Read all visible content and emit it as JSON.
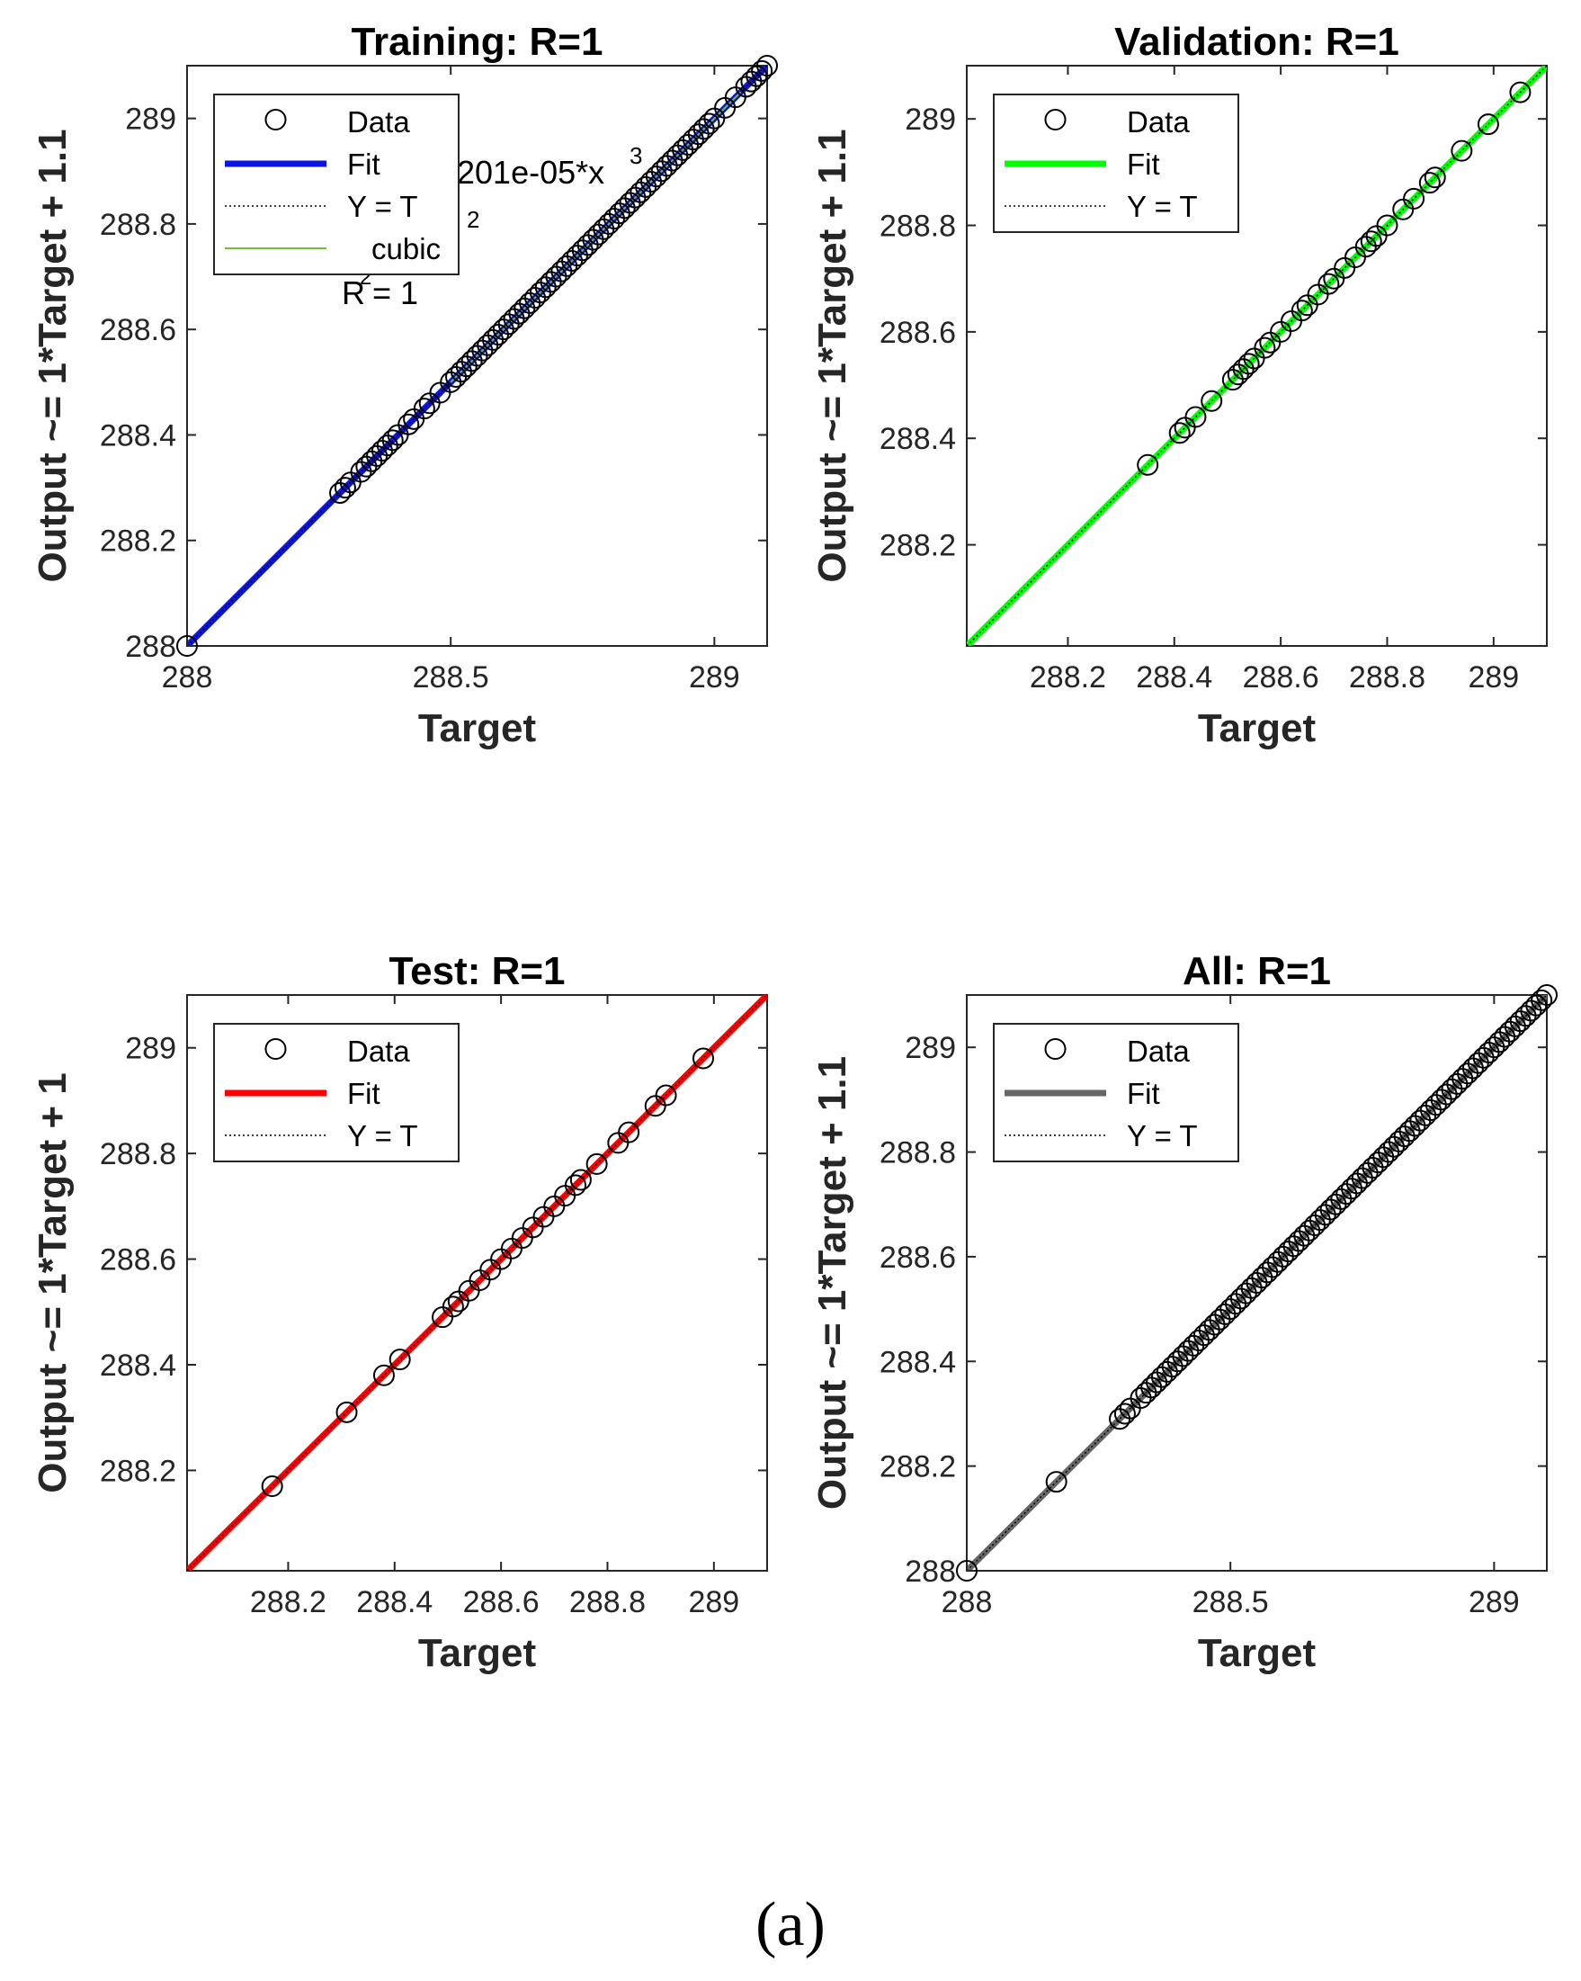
{
  "figure_caption": "(a)",
  "chart_data": [
    {
      "type": "scatter",
      "panel": "top-left",
      "title": "Training: R=1",
      "xlabel": "Target",
      "ylabel": "Output ~= 1*Target + 1.1",
      "xlim": [
        288,
        289.1
      ],
      "ylim": [
        288,
        289.1
      ],
      "xticks": [
        288,
        288.5,
        289
      ],
      "xtick_labels": [
        "288",
        "288.5",
        "289"
      ],
      "yticks": [
        288,
        288.2,
        288.4,
        288.6,
        288.8,
        289
      ],
      "ytick_labels": [
        "288",
        "288.2",
        "288.4",
        "288.6",
        "288.8",
        "289"
      ],
      "grid": false,
      "legend_position": "top-left",
      "legend": [
        {
          "label": "Data",
          "kind": "marker"
        },
        {
          "label": "Fit",
          "kind": "thick",
          "color": "#0a14e6"
        },
        {
          "label": "Y = T",
          "kind": "dotted"
        },
        {
          "label": "cubic",
          "kind": "thin",
          "color": "#6fbf3f"
        }
      ],
      "annotations": [
        "201e-05*x",
        "3",
        "2",
        "R",
        "2",
        " = 1"
      ],
      "fit_color": "#0a14e6",
      "fit": [
        [
          288,
          288
        ],
        [
          289.1,
          289.1
        ]
      ],
      "cubic_line": {
        "color": "#6fbf3f",
        "points": [
          [
            288.5,
            288.5
          ],
          [
            289.05,
            289.05
          ]
        ]
      },
      "points": [
        [
          288.0,
          288.0
        ],
        [
          288.29,
          288.29
        ],
        [
          288.3,
          288.3
        ],
        [
          288.31,
          288.31
        ],
        [
          288.33,
          288.33
        ],
        [
          288.34,
          288.34
        ],
        [
          288.35,
          288.35
        ],
        [
          288.36,
          288.36
        ],
        [
          288.37,
          288.37
        ],
        [
          288.38,
          288.38
        ],
        [
          288.39,
          288.39
        ],
        [
          288.4,
          288.4
        ],
        [
          288.42,
          288.42
        ],
        [
          288.43,
          288.43
        ],
        [
          288.45,
          288.45
        ],
        [
          288.46,
          288.46
        ],
        [
          288.48,
          288.48
        ],
        [
          288.5,
          288.5
        ],
        [
          288.51,
          288.51
        ],
        [
          288.52,
          288.52
        ],
        [
          288.53,
          288.53
        ],
        [
          288.54,
          288.54
        ],
        [
          288.55,
          288.55
        ],
        [
          288.56,
          288.56
        ],
        [
          288.57,
          288.57
        ],
        [
          288.58,
          288.58
        ],
        [
          288.59,
          288.59
        ],
        [
          288.6,
          288.6
        ],
        [
          288.61,
          288.61
        ],
        [
          288.62,
          288.62
        ],
        [
          288.63,
          288.63
        ],
        [
          288.64,
          288.64
        ],
        [
          288.65,
          288.65
        ],
        [
          288.66,
          288.66
        ],
        [
          288.67,
          288.67
        ],
        [
          288.68,
          288.68
        ],
        [
          288.69,
          288.69
        ],
        [
          288.7,
          288.7
        ],
        [
          288.71,
          288.71
        ],
        [
          288.72,
          288.72
        ],
        [
          288.73,
          288.73
        ],
        [
          288.74,
          288.74
        ],
        [
          288.75,
          288.75
        ],
        [
          288.76,
          288.76
        ],
        [
          288.77,
          288.77
        ],
        [
          288.78,
          288.78
        ],
        [
          288.79,
          288.79
        ],
        [
          288.8,
          288.8
        ],
        [
          288.81,
          288.81
        ],
        [
          288.82,
          288.82
        ],
        [
          288.83,
          288.83
        ],
        [
          288.84,
          288.84
        ],
        [
          288.85,
          288.85
        ],
        [
          288.86,
          288.86
        ],
        [
          288.87,
          288.87
        ],
        [
          288.88,
          288.88
        ],
        [
          288.89,
          288.89
        ],
        [
          288.9,
          288.9
        ],
        [
          288.91,
          288.91
        ],
        [
          288.92,
          288.92
        ],
        [
          288.93,
          288.93
        ],
        [
          288.94,
          288.94
        ],
        [
          288.95,
          288.95
        ],
        [
          288.96,
          288.96
        ],
        [
          288.97,
          288.97
        ],
        [
          288.98,
          288.98
        ],
        [
          288.99,
          288.99
        ],
        [
          289.0,
          289.0
        ],
        [
          289.02,
          289.02
        ],
        [
          289.04,
          289.04
        ],
        [
          289.06,
          289.06
        ],
        [
          289.07,
          289.07
        ],
        [
          289.08,
          289.08
        ],
        [
          289.09,
          289.09
        ],
        [
          289.1,
          289.1
        ]
      ]
    },
    {
      "type": "scatter",
      "panel": "top-right",
      "title": "Validation: R=1",
      "xlabel": "Target",
      "ylabel": "Output ~= 1*Target + 1.1",
      "xlim": [
        288.01,
        289.1
      ],
      "ylim": [
        288.01,
        289.1
      ],
      "xticks": [
        288.2,
        288.4,
        288.6,
        288.8,
        289
      ],
      "xtick_labels": [
        "288.2",
        "288.4",
        "288.6",
        "288.8",
        "289"
      ],
      "yticks": [
        288.2,
        288.4,
        288.6,
        288.8,
        289
      ],
      "ytick_labels": [
        "288.2",
        "288.4",
        "288.6",
        "288.8",
        "289"
      ],
      "grid": false,
      "legend_position": "top-left",
      "legend": [
        {
          "label": "Data",
          "kind": "marker"
        },
        {
          "label": "Fit",
          "kind": "thick",
          "color": "#00ff00"
        },
        {
          "label": "Y = T",
          "kind": "dotted"
        }
      ],
      "fit_color": "#00ff00",
      "fit": [
        [
          288.01,
          288.01
        ],
        [
          289.1,
          289.1
        ]
      ],
      "points": [
        [
          288.35,
          288.35
        ],
        [
          288.41,
          288.41
        ],
        [
          288.42,
          288.42
        ],
        [
          288.44,
          288.44
        ],
        [
          288.47,
          288.47
        ],
        [
          288.51,
          288.51
        ],
        [
          288.52,
          288.52
        ],
        [
          288.53,
          288.53
        ],
        [
          288.54,
          288.54
        ],
        [
          288.55,
          288.55
        ],
        [
          288.57,
          288.57
        ],
        [
          288.58,
          288.58
        ],
        [
          288.6,
          288.6
        ],
        [
          288.62,
          288.62
        ],
        [
          288.64,
          288.64
        ],
        [
          288.65,
          288.65
        ],
        [
          288.67,
          288.67
        ],
        [
          288.69,
          288.69
        ],
        [
          288.7,
          288.7
        ],
        [
          288.72,
          288.72
        ],
        [
          288.74,
          288.74
        ],
        [
          288.76,
          288.76
        ],
        [
          288.77,
          288.77
        ],
        [
          288.78,
          288.78
        ],
        [
          288.8,
          288.8
        ],
        [
          288.83,
          288.83
        ],
        [
          288.85,
          288.85
        ],
        [
          288.88,
          288.88
        ],
        [
          288.89,
          288.89
        ],
        [
          288.94,
          288.94
        ],
        [
          288.99,
          288.99
        ],
        [
          289.05,
          289.05
        ]
      ]
    },
    {
      "type": "scatter",
      "panel": "bottom-left",
      "title": "Test: R=1",
      "xlabel": "Target",
      "ylabel": "Output ~= 1*Target + 1",
      "xlim": [
        288.01,
        289.1
      ],
      "ylim": [
        288.01,
        289.1
      ],
      "xticks": [
        288.2,
        288.4,
        288.6,
        288.8,
        289
      ],
      "xtick_labels": [
        "288.2",
        "288.4",
        "288.6",
        "288.8",
        "289"
      ],
      "yticks": [
        288.2,
        288.4,
        288.6,
        288.8,
        289
      ],
      "ytick_labels": [
        "288.2",
        "288.4",
        "288.6",
        "288.8",
        "289"
      ],
      "grid": false,
      "legend_position": "top-left",
      "legend": [
        {
          "label": "Data",
          "kind": "marker"
        },
        {
          "label": "Fit",
          "kind": "thick",
          "color": "#ff0000"
        },
        {
          "label": "Y = T",
          "kind": "dotted"
        }
      ],
      "fit_color": "#ff0000",
      "fit": [
        [
          288.01,
          288.01
        ],
        [
          289.1,
          289.1
        ]
      ],
      "points": [
        [
          288.17,
          288.17
        ],
        [
          288.31,
          288.31
        ],
        [
          288.38,
          288.38
        ],
        [
          288.41,
          288.41
        ],
        [
          288.49,
          288.49
        ],
        [
          288.51,
          288.51
        ],
        [
          288.52,
          288.52
        ],
        [
          288.54,
          288.54
        ],
        [
          288.56,
          288.56
        ],
        [
          288.58,
          288.58
        ],
        [
          288.6,
          288.6
        ],
        [
          288.62,
          288.62
        ],
        [
          288.64,
          288.64
        ],
        [
          288.66,
          288.66
        ],
        [
          288.68,
          288.68
        ],
        [
          288.7,
          288.7
        ],
        [
          288.72,
          288.72
        ],
        [
          288.74,
          288.74
        ],
        [
          288.75,
          288.75
        ],
        [
          288.78,
          288.78
        ],
        [
          288.82,
          288.82
        ],
        [
          288.84,
          288.84
        ],
        [
          288.89,
          288.89
        ],
        [
          288.91,
          288.91
        ],
        [
          288.98,
          288.98
        ]
      ]
    },
    {
      "type": "scatter",
      "panel": "bottom-right",
      "title": "All: R=1",
      "xlabel": "Target",
      "ylabel": "Output ~= 1*Target + 1.1",
      "xlim": [
        288,
        289.1
      ],
      "ylim": [
        288,
        289.1
      ],
      "xticks": [
        288,
        288.5,
        289
      ],
      "xtick_labels": [
        "288",
        "288.5",
        "289"
      ],
      "yticks": [
        288,
        288.2,
        288.4,
        288.6,
        288.8,
        289
      ],
      "ytick_labels": [
        "288",
        "288.2",
        "288.4",
        "288.6",
        "288.8",
        "289"
      ],
      "grid": false,
      "legend_position": "top-left",
      "legend": [
        {
          "label": "Data",
          "kind": "marker"
        },
        {
          "label": "Fit",
          "kind": "thick",
          "color": "#666666"
        },
        {
          "label": "Y = T",
          "kind": "dotted"
        }
      ],
      "fit_color": "#666666",
      "fit": [
        [
          288,
          288
        ],
        [
          289.1,
          289.1
        ]
      ],
      "points": [
        [
          288.0,
          288.0
        ],
        [
          288.17,
          288.17
        ],
        [
          288.29,
          288.29
        ],
        [
          288.3,
          288.3
        ],
        [
          288.31,
          288.31
        ],
        [
          288.33,
          288.33
        ],
        [
          288.34,
          288.34
        ],
        [
          288.35,
          288.35
        ],
        [
          288.36,
          288.36
        ],
        [
          288.37,
          288.37
        ],
        [
          288.38,
          288.38
        ],
        [
          288.39,
          288.39
        ],
        [
          288.4,
          288.4
        ],
        [
          288.41,
          288.41
        ],
        [
          288.42,
          288.42
        ],
        [
          288.43,
          288.43
        ],
        [
          288.44,
          288.44
        ],
        [
          288.45,
          288.45
        ],
        [
          288.46,
          288.46
        ],
        [
          288.47,
          288.47
        ],
        [
          288.48,
          288.48
        ],
        [
          288.49,
          288.49
        ],
        [
          288.5,
          288.5
        ],
        [
          288.51,
          288.51
        ],
        [
          288.52,
          288.52
        ],
        [
          288.53,
          288.53
        ],
        [
          288.54,
          288.54
        ],
        [
          288.55,
          288.55
        ],
        [
          288.56,
          288.56
        ],
        [
          288.57,
          288.57
        ],
        [
          288.58,
          288.58
        ],
        [
          288.59,
          288.59
        ],
        [
          288.6,
          288.6
        ],
        [
          288.61,
          288.61
        ],
        [
          288.62,
          288.62
        ],
        [
          288.63,
          288.63
        ],
        [
          288.64,
          288.64
        ],
        [
          288.65,
          288.65
        ],
        [
          288.66,
          288.66
        ],
        [
          288.67,
          288.67
        ],
        [
          288.68,
          288.68
        ],
        [
          288.69,
          288.69
        ],
        [
          288.7,
          288.7
        ],
        [
          288.71,
          288.71
        ],
        [
          288.72,
          288.72
        ],
        [
          288.73,
          288.73
        ],
        [
          288.74,
          288.74
        ],
        [
          288.75,
          288.75
        ],
        [
          288.76,
          288.76
        ],
        [
          288.77,
          288.77
        ],
        [
          288.78,
          288.78
        ],
        [
          288.79,
          288.79
        ],
        [
          288.8,
          288.8
        ],
        [
          288.81,
          288.81
        ],
        [
          288.82,
          288.82
        ],
        [
          288.83,
          288.83
        ],
        [
          288.84,
          288.84
        ],
        [
          288.85,
          288.85
        ],
        [
          288.86,
          288.86
        ],
        [
          288.87,
          288.87
        ],
        [
          288.88,
          288.88
        ],
        [
          288.89,
          288.89
        ],
        [
          288.9,
          288.9
        ],
        [
          288.91,
          288.91
        ],
        [
          288.92,
          288.92
        ],
        [
          288.93,
          288.93
        ],
        [
          288.94,
          288.94
        ],
        [
          288.95,
          288.95
        ],
        [
          288.96,
          288.96
        ],
        [
          288.97,
          288.97
        ],
        [
          288.98,
          288.98
        ],
        [
          288.99,
          288.99
        ],
        [
          289.0,
          289.0
        ],
        [
          289.01,
          289.01
        ],
        [
          289.02,
          289.02
        ],
        [
          289.03,
          289.03
        ],
        [
          289.04,
          289.04
        ],
        [
          289.05,
          289.05
        ],
        [
          289.06,
          289.06
        ],
        [
          289.07,
          289.07
        ],
        [
          289.08,
          289.08
        ],
        [
          289.09,
          289.09
        ],
        [
          289.1,
          289.1
        ]
      ]
    }
  ]
}
